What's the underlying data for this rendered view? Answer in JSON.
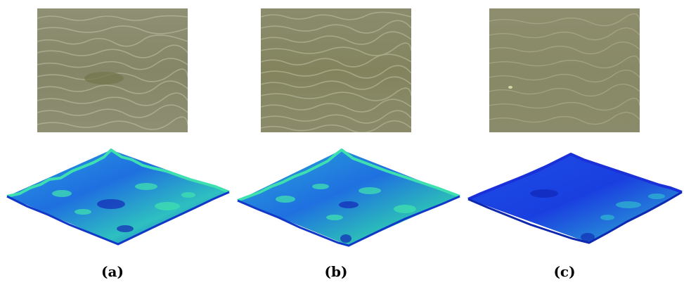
{
  "figure": {
    "panels": [
      {
        "label": "(a)",
        "photo_color": "#8a8b6c",
        "surface_peak_color": "#3fe0b0",
        "surface_base_color": "#1a4fd8"
      },
      {
        "label": "(b)",
        "photo_color": "#86875f",
        "surface_peak_color": "#3fe0b0",
        "surface_base_color": "#1a4fd8"
      },
      {
        "label": "(c)",
        "photo_color": "#8c8c66",
        "surface_peak_color": "#2fb8d0",
        "surface_base_color": "#1a3fe0"
      }
    ]
  }
}
